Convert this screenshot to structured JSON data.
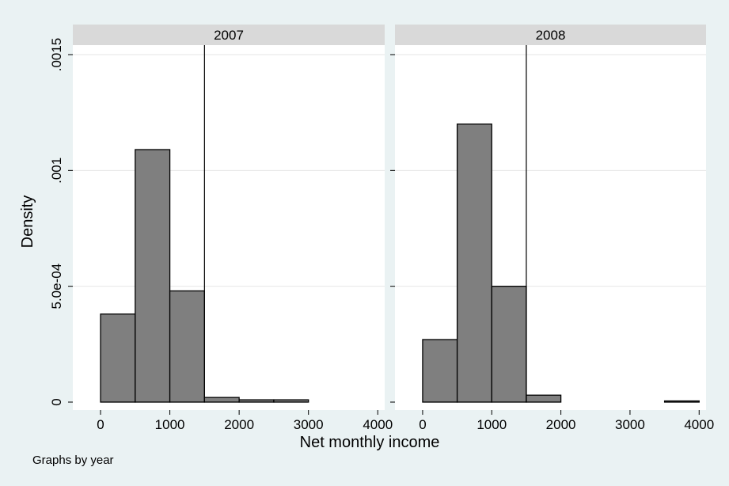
{
  "chart_data": {
    "type": "bar",
    "subtype": "histogram",
    "xlabel": "Net monthly income",
    "ylabel": "Density",
    "note": "Graphs by year",
    "xlim": [
      -400,
      4100
    ],
    "ylim": [
      0,
      0.0015
    ],
    "x_ticks": [
      "0",
      "1000",
      "2000",
      "3000",
      "4000"
    ],
    "x_tick_values": [
      0,
      1000,
      2000,
      3000,
      4000
    ],
    "y_ticks": [
      "0",
      "5.0e-04",
      ".001",
      ".0015"
    ],
    "y_tick_values": [
      0,
      0.0005,
      0.001,
      0.0015
    ],
    "reference_line_x": 1500,
    "bin_edges": [
      0,
      500,
      1000,
      1500,
      2000,
      2500,
      3000,
      3500,
      4000
    ],
    "grid": true,
    "bar_color": "#7f7f7f",
    "panels": [
      {
        "title": "2007",
        "values": [
          0.00038,
          0.00109,
          0.00048,
          2e-05,
          1e-05,
          1e-05,
          0,
          0
        ]
      },
      {
        "title": "2008",
        "values": [
          0.00027,
          0.0012,
          0.0005,
          3e-05,
          0,
          0,
          0,
          5e-06
        ]
      }
    ]
  }
}
